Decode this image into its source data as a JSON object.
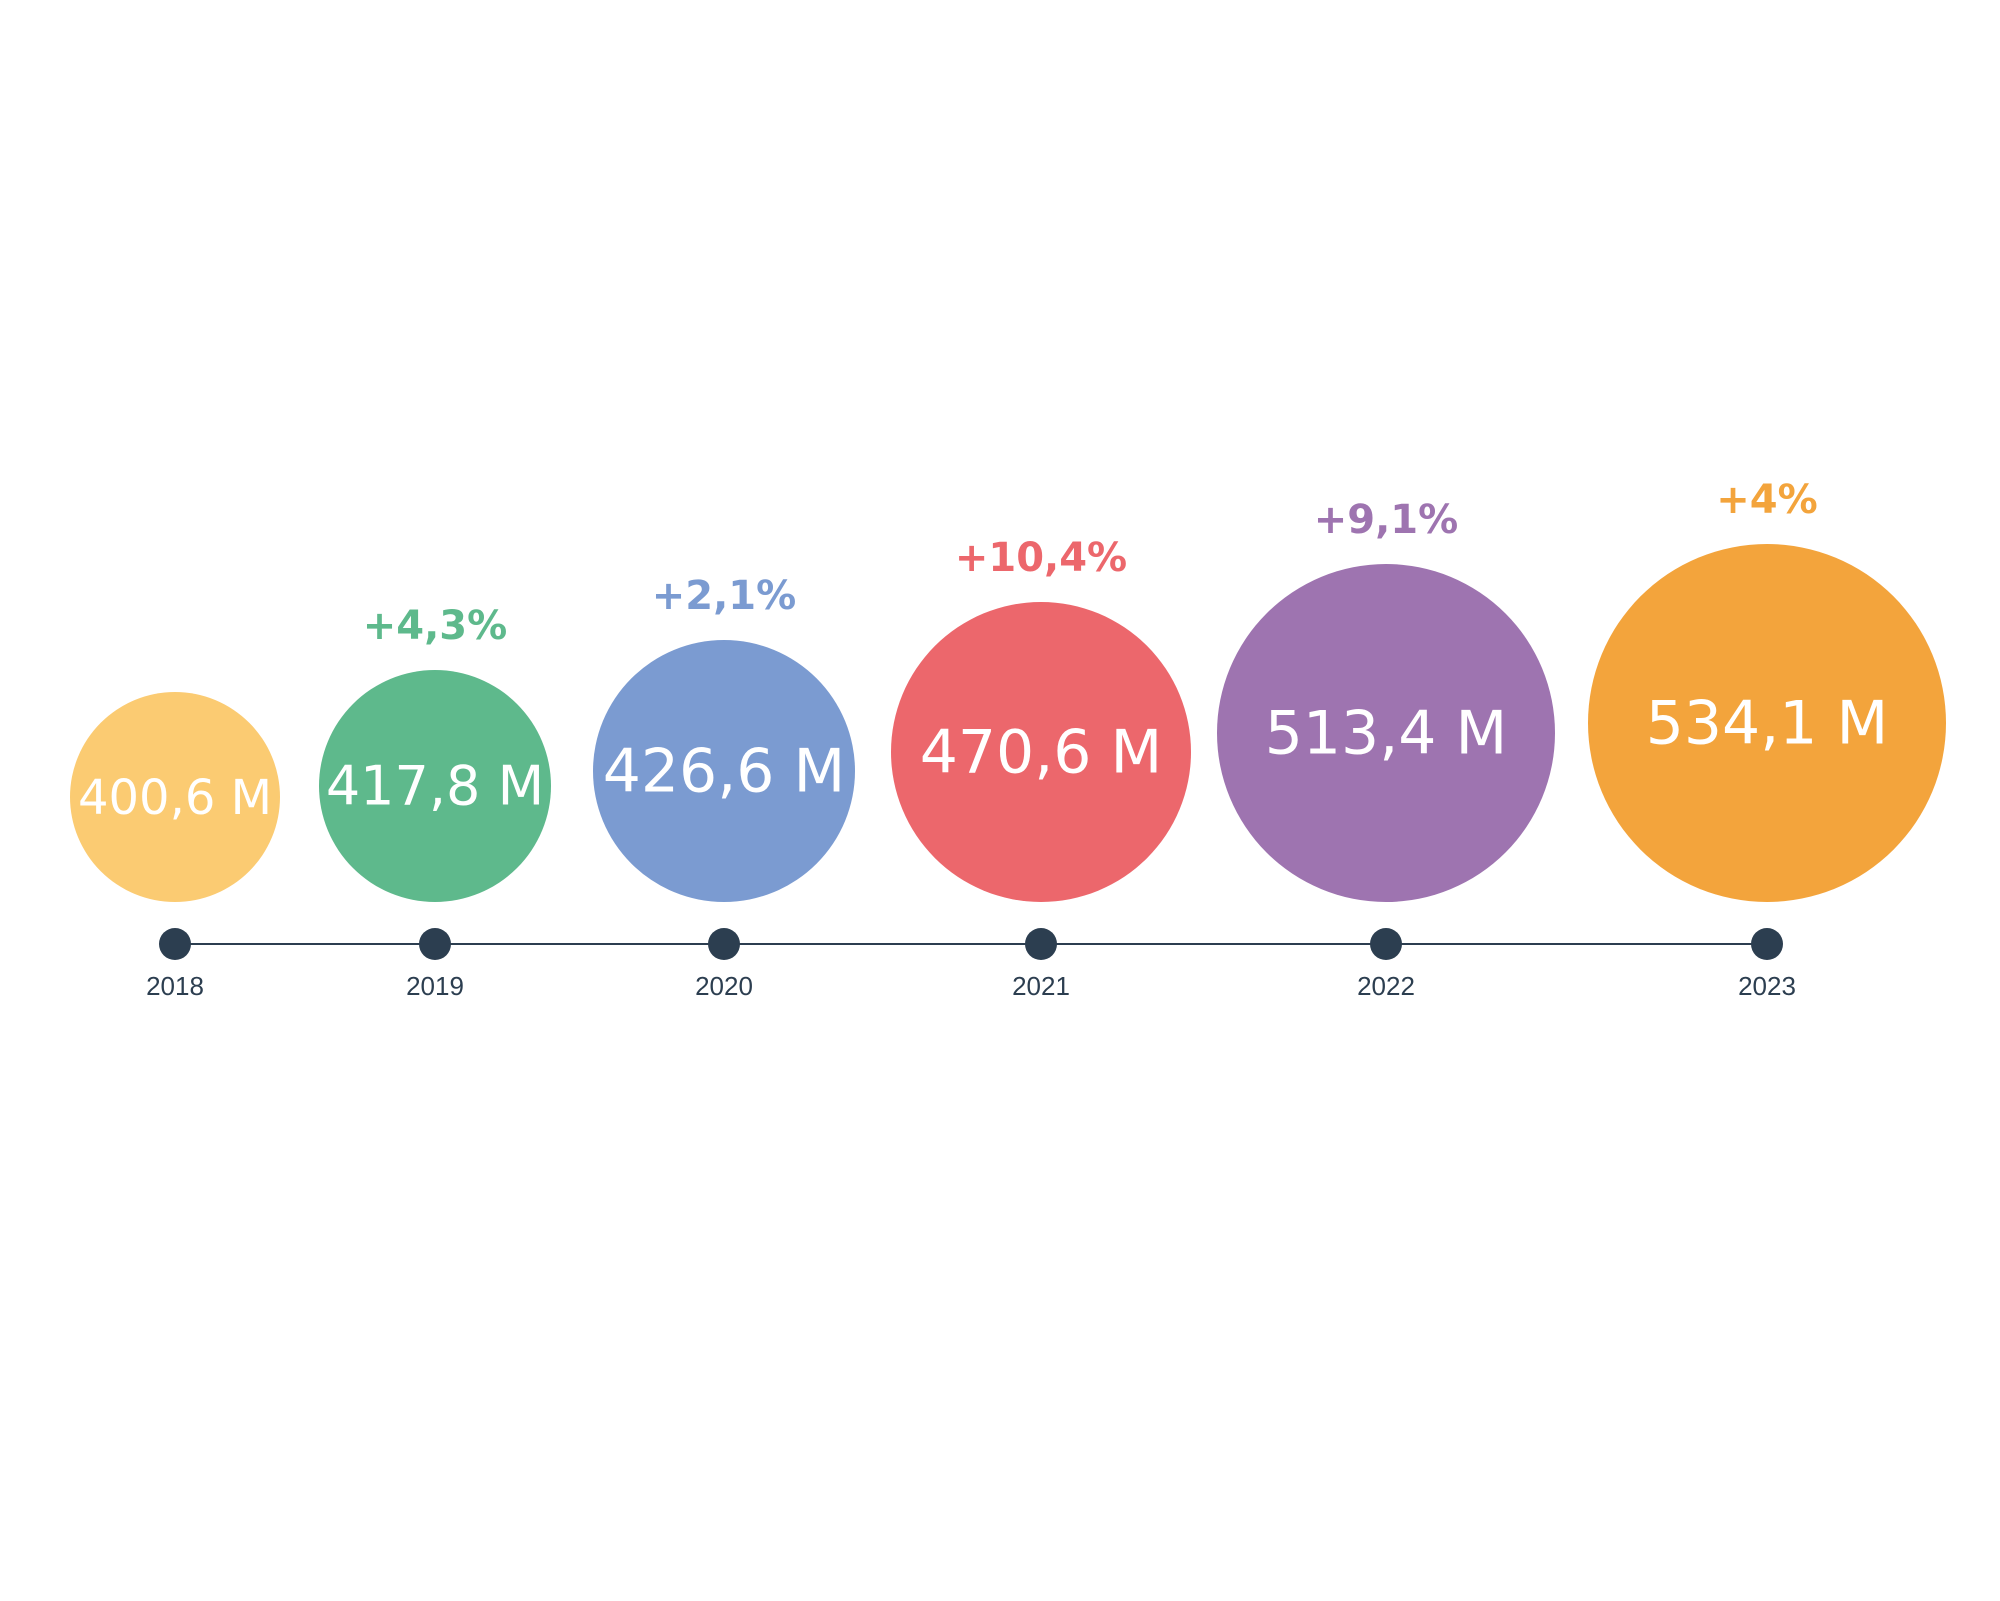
{
  "chart_data": {
    "type": "bubble-timeline",
    "categories": [
      "2018",
      "2019",
      "2020",
      "2021",
      "2022",
      "2023"
    ],
    "values": [
      400.6,
      417.8,
      426.6,
      470.6,
      513.4,
      534.1
    ],
    "value_labels": [
      "400,6 M",
      "417,8 M",
      "426,6 M",
      "470,6 M",
      "513,4 M",
      "534,1 M"
    ],
    "growth_labels": [
      "",
      "+4,3%",
      "+2,1%",
      "+10,4%",
      "+9,1%",
      "+4%"
    ],
    "colors": [
      "#FBCB72",
      "#5EB98C",
      "#7B9BD1",
      "#EC676C",
      "#9E74B0",
      "#F3A43C"
    ],
    "timeline_color": "#2c3e50"
  }
}
